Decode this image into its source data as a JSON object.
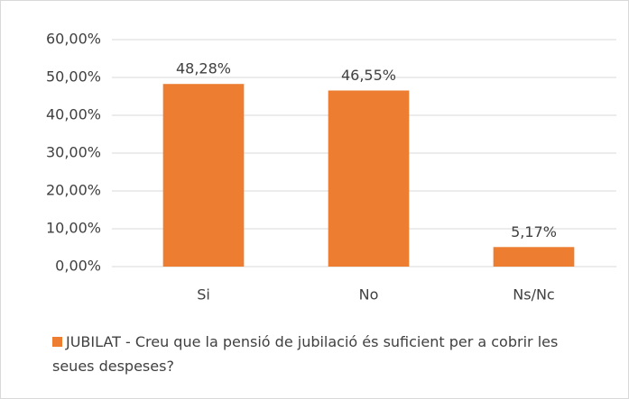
{
  "chart_data": {
    "type": "bar",
    "categories": [
      "Si",
      "No",
      "Ns/Nc"
    ],
    "series": [
      {
        "name": "JUBILAT - Creu que la pensió de jubilació és suficient per a cobrir les seues despeses?",
        "color": "#ed7d31",
        "values": [
          48.28,
          46.55,
          5.17
        ],
        "value_labels": [
          "48,28%",
          "46,55%",
          "5,17%"
        ]
      }
    ],
    "ylim": [
      0,
      60
    ],
    "yticks": [
      {
        "value": 0,
        "label": "0,00%"
      },
      {
        "value": 10,
        "label": "10,00%"
      },
      {
        "value": 20,
        "label": "20,00%"
      },
      {
        "value": 30,
        "label": "30,00%"
      },
      {
        "value": 40,
        "label": "40,00%"
      },
      {
        "value": 50,
        "label": "50,00%"
      },
      {
        "value": 60,
        "label": "60,00%"
      }
    ],
    "grid": true,
    "legend": "bottom"
  }
}
